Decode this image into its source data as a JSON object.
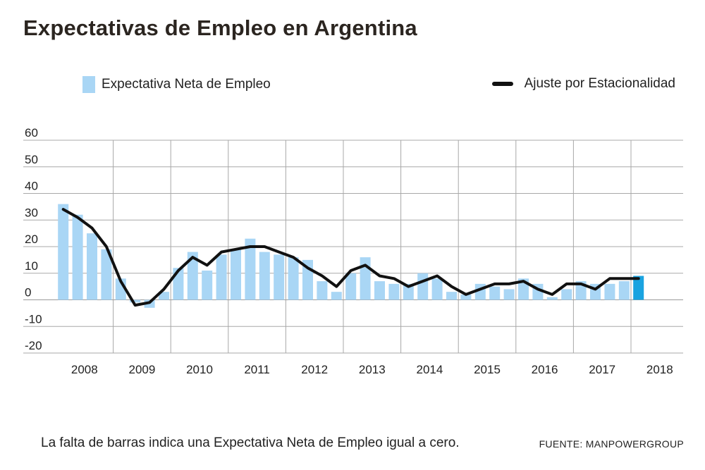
{
  "title": "Expectativas de Empleo en Argentina",
  "legend": {
    "bars_label": "Expectativa Neta de Empleo",
    "line_label": "Ajuste por Estacionalidad"
  },
  "note": "La falta de barras indica una Expectativa Neta de Empleo igual a cero.",
  "source": "FUENTE: MANPOWERGROUP",
  "colors": {
    "bar": "#a9d6f5",
    "bar_highlight": "#1aa3e0",
    "line": "#111111",
    "grid": "#a8a8a8"
  },
  "chart_data": {
    "type": "bar",
    "ylim": [
      -20,
      60
    ],
    "yticks": [
      "60",
      "50",
      "40",
      "30",
      "20",
      "10",
      "0",
      "-10",
      "-20"
    ],
    "year_labels": [
      "2008",
      "2009",
      "2010",
      "2011",
      "2012",
      "2013",
      "2014",
      "2015",
      "2016",
      "2017",
      "2018"
    ],
    "quarters_per_year": 4,
    "grid": true,
    "series": [
      {
        "name": "Expectativa Neta de Empleo",
        "type": "bar",
        "values": [
          36,
          32,
          25,
          19,
          8,
          -1,
          -3,
          3,
          12,
          18,
          11,
          17,
          19,
          23,
          18,
          17,
          16,
          15,
          7,
          3,
          10,
          16,
          7,
          6,
          6,
          10,
          8,
          3,
          2,
          6,
          5,
          4,
          8,
          6,
          1,
          4,
          7,
          6,
          6,
          7,
          9
        ]
      },
      {
        "name": "Ajuste por Estacionalidad",
        "type": "line",
        "values": [
          34,
          31,
          27,
          20,
          7,
          -2,
          -1,
          4,
          11,
          16,
          13,
          18,
          19,
          20,
          20,
          18,
          16,
          12,
          9,
          5,
          11,
          13,
          9,
          8,
          5,
          7,
          9,
          5,
          2,
          4,
          6,
          6,
          7,
          4,
          2,
          6,
          6,
          4,
          8,
          8,
          8
        ]
      }
    ]
  }
}
